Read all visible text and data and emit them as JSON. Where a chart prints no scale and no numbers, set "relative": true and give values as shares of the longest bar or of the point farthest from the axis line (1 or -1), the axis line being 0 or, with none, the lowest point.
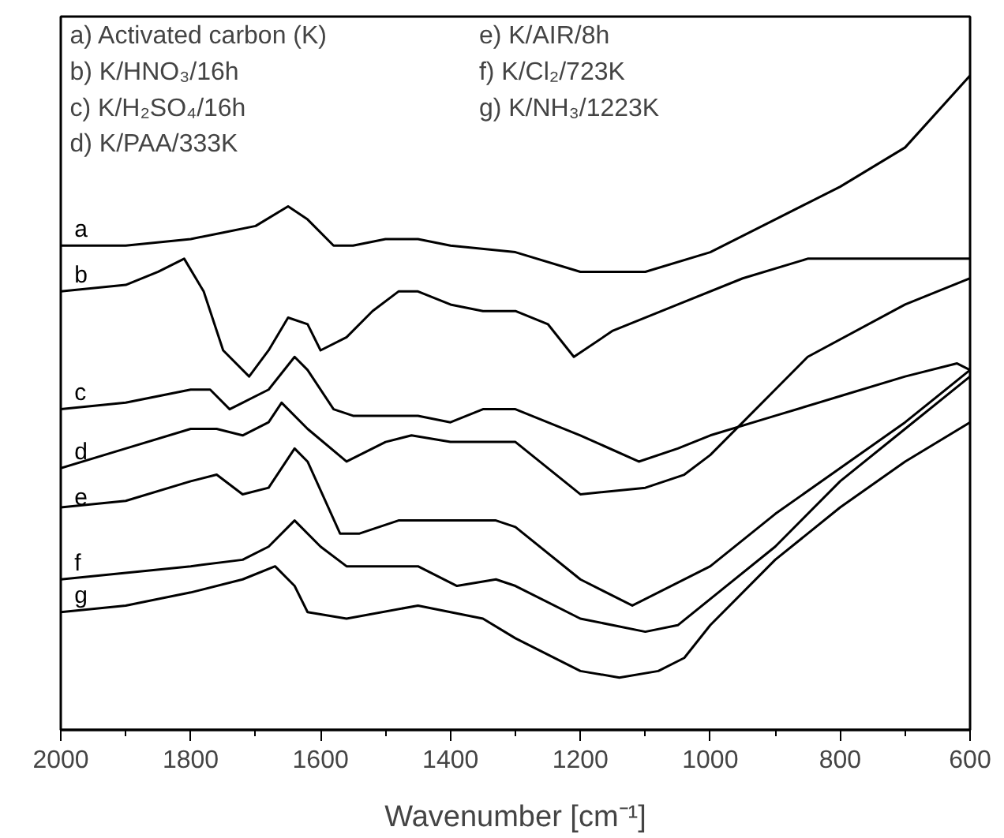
{
  "chart_data": {
    "type": "line",
    "relative": true,
    "xlabel": "Wavenumber [cm⁻¹]",
    "xlim": [
      2000,
      600
    ],
    "xticks": [
      2000,
      {
        "value": 1900,
        "label": null
      },
      1800,
      {
        "value": 1700,
        "label": null
      },
      1600,
      {
        "value": 1500,
        "label": null
      },
      1400,
      {
        "value": 1300,
        "label": null
      },
      1200,
      {
        "value": 1100,
        "label": null
      },
      1000,
      {
        "value": 900,
        "label": null
      },
      800,
      {
        "value": 700,
        "label": null
      },
      600
    ],
    "grid": false,
    "marker": "none",
    "line_style": "solid",
    "annotations": [
      "a)  Activated carbon (K)",
      "b)  K/HNO₃/16h",
      "c)  K/H₂SO₄/16h",
      "d)  K/PAA/333K",
      "e)  K/AIR/8h",
      "f)  K/Cl₂/723K",
      "g)  K/NH₃/1223K"
    ],
    "series": [
      {
        "name": "a",
        "color": "#000000",
        "x": [
          2000,
          1900,
          1800,
          1750,
          1700,
          1650,
          1620,
          1580,
          1550,
          1500,
          1450,
          1400,
          1300,
          1200,
          1100,
          1000,
          900,
          800,
          700,
          600
        ],
        "values": [
          0.74,
          0.74,
          0.75,
          0.76,
          0.77,
          0.8,
          0.78,
          0.74,
          0.74,
          0.75,
          0.75,
          0.74,
          0.73,
          0.7,
          0.7,
          0.73,
          0.78,
          0.83,
          0.89,
          1.0
        ]
      },
      {
        "name": "b",
        "color": "#000000",
        "x": [
          2000,
          1900,
          1850,
          1810,
          1780,
          1750,
          1710,
          1680,
          1650,
          1620,
          1600,
          1560,
          1520,
          1480,
          1450,
          1400,
          1350,
          1300,
          1250,
          1210,
          1150,
          1050,
          950,
          850,
          750,
          700,
          600
        ],
        "values": [
          0.67,
          0.68,
          0.7,
          0.72,
          0.67,
          0.58,
          0.54,
          0.58,
          0.63,
          0.62,
          0.58,
          0.6,
          0.64,
          0.67,
          0.67,
          0.65,
          0.64,
          0.64,
          0.62,
          0.57,
          0.61,
          0.65,
          0.69,
          0.72,
          0.72,
          0.72,
          0.72
        ]
      },
      {
        "name": "c",
        "color": "#000000",
        "x": [
          2000,
          1900,
          1800,
          1770,
          1740,
          1720,
          1680,
          1640,
          1620,
          1580,
          1550,
          1450,
          1400,
          1350,
          1300,
          1200,
          1110,
          1050,
          1000,
          900,
          800,
          700,
          620,
          600
        ],
        "values": [
          0.49,
          0.5,
          0.52,
          0.52,
          0.49,
          0.5,
          0.52,
          0.57,
          0.55,
          0.49,
          0.48,
          0.48,
          0.47,
          0.49,
          0.49,
          0.45,
          0.41,
          0.43,
          0.45,
          0.48,
          0.51,
          0.54,
          0.56,
          0.55
        ]
      },
      {
        "name": "d",
        "color": "#000000",
        "x": [
          2000,
          1900,
          1800,
          1760,
          1720,
          1680,
          1660,
          1620,
          1560,
          1500,
          1460,
          1400,
          1330,
          1300,
          1200,
          1100,
          1040,
          1000,
          900,
          850,
          700,
          600
        ],
        "values": [
          0.4,
          0.43,
          0.46,
          0.46,
          0.45,
          0.47,
          0.5,
          0.46,
          0.41,
          0.44,
          0.45,
          0.44,
          0.44,
          0.44,
          0.36,
          0.37,
          0.39,
          0.42,
          0.52,
          0.57,
          0.65,
          0.69
        ]
      },
      {
        "name": "e",
        "color": "#000000",
        "x": [
          2000,
          1900,
          1800,
          1760,
          1720,
          1680,
          1640,
          1620,
          1570,
          1540,
          1480,
          1400,
          1330,
          1300,
          1200,
          1120,
          1000,
          900,
          800,
          700,
          600
        ],
        "values": [
          0.34,
          0.35,
          0.38,
          0.39,
          0.36,
          0.37,
          0.43,
          0.41,
          0.3,
          0.3,
          0.32,
          0.32,
          0.32,
          0.31,
          0.23,
          0.19,
          0.25,
          0.33,
          0.4,
          0.47,
          0.55
        ]
      },
      {
        "name": "f",
        "color": "#000000",
        "x": [
          2000,
          1900,
          1800,
          1720,
          1680,
          1640,
          1600,
          1560,
          1450,
          1390,
          1330,
          1300,
          1200,
          1100,
          1050,
          1000,
          900,
          800,
          700,
          600
        ],
        "values": [
          0.23,
          0.24,
          0.25,
          0.26,
          0.28,
          0.32,
          0.28,
          0.25,
          0.25,
          0.22,
          0.23,
          0.22,
          0.17,
          0.15,
          0.16,
          0.2,
          0.28,
          0.38,
          0.46,
          0.54
        ]
      },
      {
        "name": "g",
        "color": "#000000",
        "x": [
          2000,
          1900,
          1800,
          1720,
          1670,
          1640,
          1620,
          1560,
          1450,
          1350,
          1300,
          1200,
          1140,
          1080,
          1040,
          1000,
          900,
          800,
          700,
          600
        ],
        "values": [
          0.18,
          0.19,
          0.21,
          0.23,
          0.25,
          0.22,
          0.18,
          0.17,
          0.19,
          0.17,
          0.14,
          0.09,
          0.08,
          0.09,
          0.11,
          0.16,
          0.26,
          0.34,
          0.41,
          0.47
        ]
      }
    ]
  }
}
